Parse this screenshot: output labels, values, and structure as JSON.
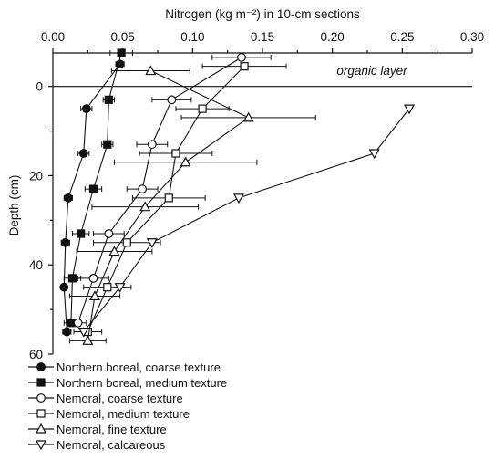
{
  "chart_data": {
    "type": "line",
    "xlabel": "Nitrogen (kg m⁻²) in 10-cm sections",
    "ylabel": "Depth (cm)",
    "x_axis_position": "top",
    "y_axis_inverted": true,
    "xlim": [
      0.0,
      0.3
    ],
    "ylim": [
      -7.5,
      60
    ],
    "x_ticks": [
      0.0,
      0.05,
      0.1,
      0.15,
      0.2,
      0.25,
      0.3
    ],
    "x_tick_labels": [
      "0.00",
      "0.05",
      "0.10",
      "0.15",
      "0.20",
      "0.25",
      "0.30"
    ],
    "y_ticks": [
      0,
      20,
      40,
      60
    ],
    "y_tick_labels": [
      "0",
      "20",
      "40",
      "60"
    ],
    "annotation": "organic layer",
    "legend_position": "bottom-left",
    "series": [
      {
        "name": "Northern boreal, coarse texture",
        "marker": "circle-filled",
        "points": [
          {
            "x": 0.048,
            "y": -5.0,
            "err": 0.003
          },
          {
            "x": 0.024,
            "y": 5,
            "err": 0.004
          },
          {
            "x": 0.022,
            "y": 15,
            "err": 0.004
          },
          {
            "x": 0.011,
            "y": 25,
            "err": 0.003
          },
          {
            "x": 0.009,
            "y": 35,
            "err": 0.003
          },
          {
            "x": 0.008,
            "y": 45,
            "err": 0.002
          },
          {
            "x": 0.01,
            "y": 55,
            "err": 0.003
          }
        ]
      },
      {
        "name": "Northern boreal, medium texture",
        "marker": "square-filled",
        "points": [
          {
            "x": 0.049,
            "y": -7.5,
            "err": 0.008
          },
          {
            "x": 0.04,
            "y": 3,
            "err": 0.004
          },
          {
            "x": 0.039,
            "y": 13,
            "err": 0.004
          },
          {
            "x": 0.029,
            "y": 23,
            "err": 0.006
          },
          {
            "x": 0.02,
            "y": 33,
            "err": 0.006
          },
          {
            "x": 0.014,
            "y": 43,
            "err": 0.006
          },
          {
            "x": 0.013,
            "y": 53,
            "err": 0.005
          }
        ]
      },
      {
        "name": "Nemoral, coarse texture",
        "marker": "circle-open",
        "points": [
          {
            "x": 0.135,
            "y": -6.5,
            "err": 0.021
          },
          {
            "x": 0.085,
            "y": 3,
            "err": 0.014
          },
          {
            "x": 0.071,
            "y": 13,
            "err": 0.011
          },
          {
            "x": 0.064,
            "y": 23,
            "err": 0.011
          },
          {
            "x": 0.04,
            "y": 33,
            "err": 0.011
          },
          {
            "x": 0.029,
            "y": 43,
            "err": 0.011
          },
          {
            "x": 0.018,
            "y": 53,
            "err": 0.006
          }
        ]
      },
      {
        "name": "Nemoral, medium texture",
        "marker": "square-open",
        "points": [
          {
            "x": 0.137,
            "y": -4.5,
            "err": 0.03
          },
          {
            "x": 0.107,
            "y": 5,
            "err": 0.019
          },
          {
            "x": 0.088,
            "y": 15,
            "err": 0.026
          },
          {
            "x": 0.083,
            "y": 25,
            "err": 0.026
          },
          {
            "x": 0.053,
            "y": 35,
            "err": 0.024
          },
          {
            "x": 0.039,
            "y": 45,
            "err": 0.017
          },
          {
            "x": 0.025,
            "y": 55,
            "err": 0.01
          }
        ]
      },
      {
        "name": "Nemoral, fine texture",
        "marker": "triangle-up-open",
        "points": [
          {
            "x": 0.07,
            "y": -3.5,
            "err": 0.028
          },
          {
            "x": 0.14,
            "y": 7,
            "err": 0.048
          },
          {
            "x": 0.095,
            "y": 17,
            "err": 0.051
          },
          {
            "x": 0.066,
            "y": 27,
            "err": 0.038
          },
          {
            "x": 0.044,
            "y": 37,
            "err": 0.027
          },
          {
            "x": 0.03,
            "y": 47,
            "err": 0.018
          },
          {
            "x": 0.025,
            "y": 57,
            "err": 0.013
          }
        ]
      },
      {
        "name": "Nemoral, calcareous",
        "marker": "triangle-down-open",
        "points": [
          {
            "x": 0.255,
            "y": 5,
            "err": 0.0
          },
          {
            "x": 0.23,
            "y": 15,
            "err": 0.0
          },
          {
            "x": 0.133,
            "y": 25,
            "err": 0.0
          },
          {
            "x": 0.071,
            "y": 35,
            "err": 0.0
          },
          {
            "x": 0.048,
            "y": 45,
            "err": 0.0
          },
          {
            "x": 0.022,
            "y": 55,
            "err": 0.0
          }
        ]
      }
    ]
  }
}
